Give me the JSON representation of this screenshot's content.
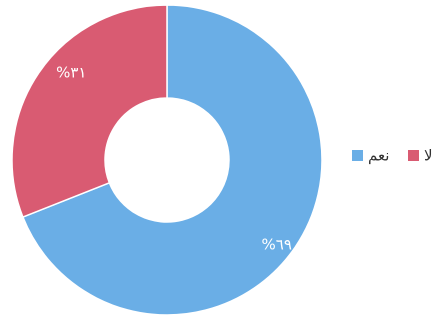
{
  "chart_data": {
    "type": "pie",
    "donut": true,
    "categories": [
      "نعم",
      "لا"
    ],
    "values": [
      69,
      31
    ],
    "labels": [
      "%٦٩",
      "%٣١"
    ],
    "colors": [
      "#6aaee6",
      "#d95b72"
    ],
    "legend_position": "right",
    "title": "",
    "xlabel": "",
    "ylabel": ""
  }
}
